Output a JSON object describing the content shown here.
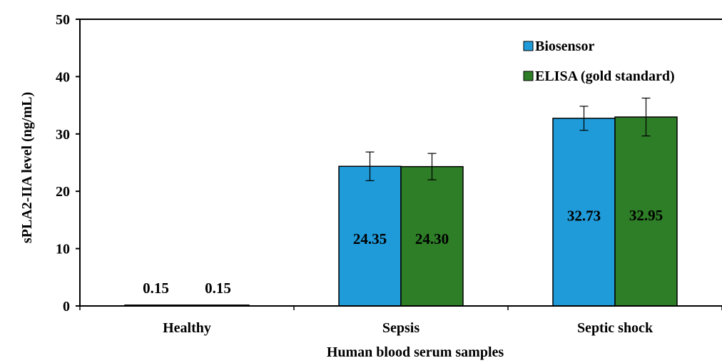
{
  "chart_data": {
    "type": "bar",
    "title": "",
    "xlabel": "Human blood serum samples",
    "ylabel": "sPLA2-IIA level (ng/mL)",
    "ylim": [
      0,
      50
    ],
    "yticks": [
      0,
      10,
      20,
      30,
      40,
      50
    ],
    "ytick_labels": [
      "0",
      "10",
      "20",
      "30",
      "40",
      "50"
    ],
    "categories": [
      "Healthy",
      "Sepsis",
      "Septic shock"
    ],
    "series": [
      {
        "name": "Biosensor",
        "color": "#1f9bd9",
        "values": [
          0.15,
          24.35,
          32.73
        ],
        "errors": [
          0,
          2.5,
          2.1
        ],
        "labels": [
          "0.15",
          "24.35",
          "32.73"
        ]
      },
      {
        "name": "ELISA (gold standard)",
        "color": "#2e7d27",
        "values": [
          0.15,
          24.3,
          32.95
        ],
        "errors": [
          0,
          2.3,
          3.3
        ],
        "labels": [
          "0.15",
          "24.30",
          "32.95"
        ]
      }
    ],
    "legend_position": "top-right",
    "grid": false
  }
}
